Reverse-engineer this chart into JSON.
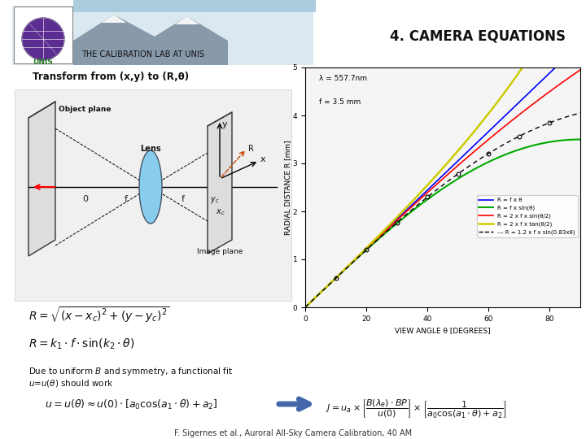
{
  "title": "4. CAMERA EQUATIONS",
  "header_label": "THE CALIBRATION LAB AT UNIS",
  "transform_label": "Transform from (x,y) to (R,θ)",
  "f_value": 3.5,
  "lambda_text": "λ = 557.7nm",
  "f_text": "f = 3.5 mm",
  "xlabel": "VIEW ANGLE θ [DEGREES]",
  "ylabel": "RADIAL DISTANCE R [mm]",
  "xlim": [
    0,
    90
  ],
  "ylim": [
    0,
    5
  ],
  "xticks": [
    0,
    20,
    40,
    60,
    80
  ],
  "yticks": [
    0,
    1,
    2,
    3,
    4,
    5
  ],
  "legend_entries": [
    "R = f x θ",
    "R = f x sin(θ)",
    "R = 2 x f x sin(θ/2)",
    "R = 2 x f x tan(θ/2)",
    "--- R = 1.2 x f x sin(0.83xθ)"
  ],
  "footer": "F. Sigernes et al., Auroral All-Sky Camera Calibration, 40 AM",
  "slide_bg": "#ffffff",
  "header_bg": "#e8eef5",
  "plot_bg": "#f5f5f5"
}
